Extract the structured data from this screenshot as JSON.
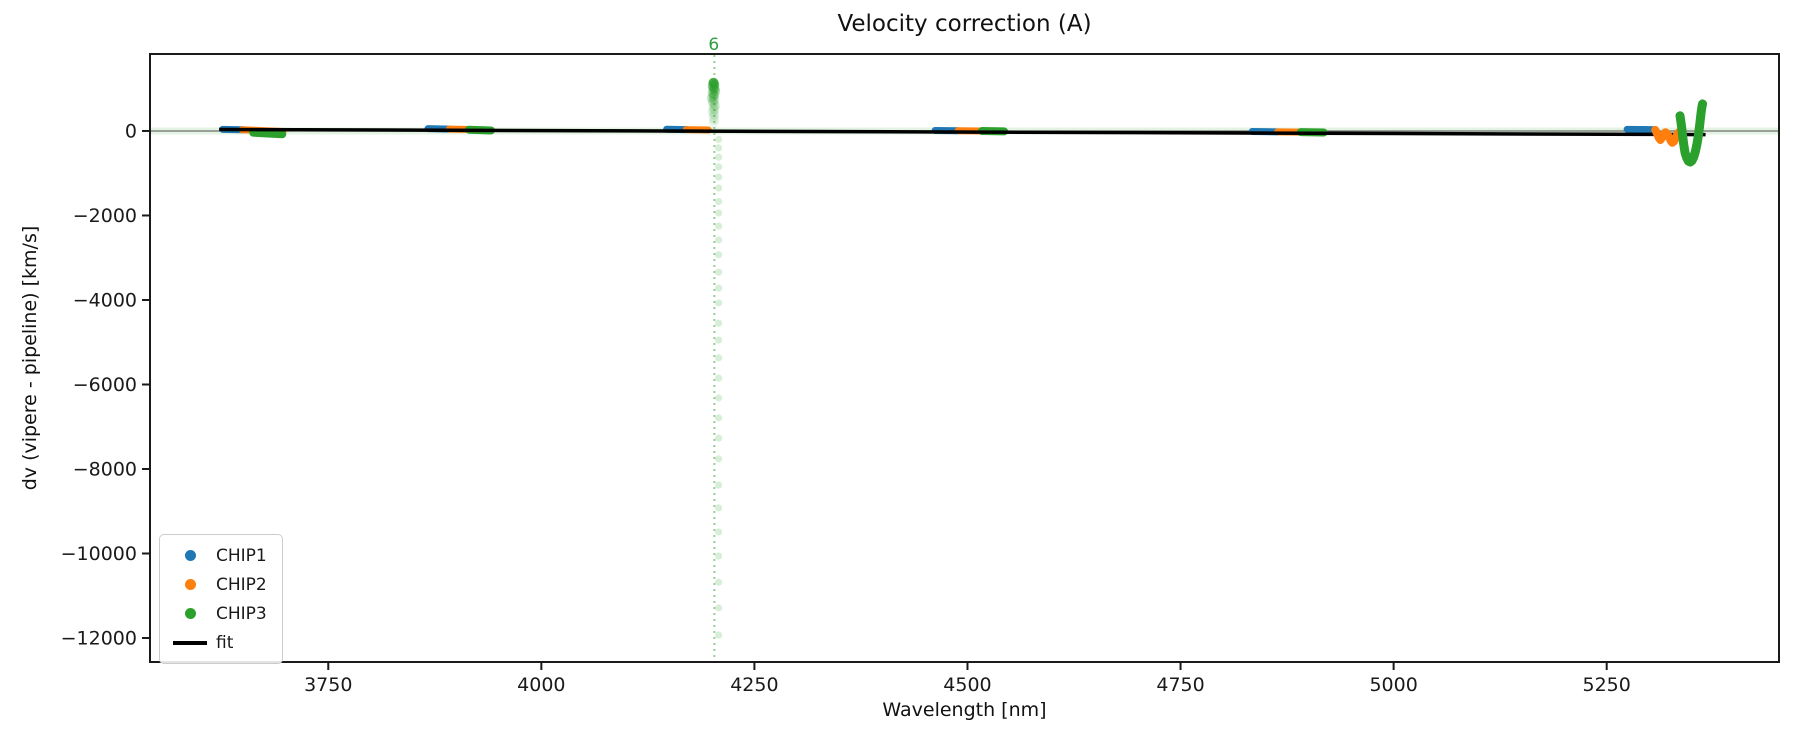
{
  "chart_data": {
    "type": "scatter",
    "title": "Velocity correction (A)",
    "xlabel": "Wavelength [nm]",
    "ylabel": "dv (vipere - pipeline) [km/s]",
    "xlim": [
      3542,
      5451
    ],
    "ylim": [
      -12544,
      1798
    ],
    "grid": false,
    "xticks": [
      {
        "value": 3750,
        "label": "3750"
      },
      {
        "value": 4000,
        "label": "4000"
      },
      {
        "value": 4250,
        "label": "4250"
      },
      {
        "value": 4500,
        "label": "4500"
      },
      {
        "value": 4750,
        "label": "4750"
      },
      {
        "value": 5000,
        "label": "5000"
      },
      {
        "value": 5250,
        "label": "5250"
      }
    ],
    "yticks": [
      {
        "value": 0,
        "label": "0"
      },
      {
        "value": -2000,
        "label": "−2000"
      },
      {
        "value": -4000,
        "label": "−4000"
      },
      {
        "value": -6000,
        "label": "−6000"
      },
      {
        "value": -8000,
        "label": "−8000"
      },
      {
        "value": -10000,
        "label": "−10000"
      },
      {
        "value": -12000,
        "label": "−12000"
      }
    ],
    "legend": {
      "position": "lower left",
      "entries": [
        {
          "label": "CHIP1",
          "color": "#1f77b4",
          "marker": "dot"
        },
        {
          "label": "CHIP2",
          "color": "#ff7f0e",
          "marker": "dot"
        },
        {
          "label": "CHIP3",
          "color": "#2ca02c",
          "marker": "dot"
        },
        {
          "label": "fit",
          "color": "#000000",
          "marker": "line"
        }
      ]
    },
    "zero_line": {
      "dv": 0,
      "band_color": "rgba(44,160,44,0.13)",
      "line_color": "#4d4d4d"
    },
    "vline": {
      "x": 4203,
      "label": "6",
      "color": "rgba(44,160,44,0.5)",
      "style": "dotted"
    },
    "fit_line": {
      "color": "#000000",
      "points": [
        [
          3622,
          36
        ],
        [
          5366,
          -85
        ]
      ]
    },
    "series": [
      {
        "name": "CHIP1",
        "color": "#1f77b4",
        "stroke": 7,
        "segments": [
          {
            "x": [
              3626,
              3650
            ],
            "dv": [
              38,
              30
            ]
          },
          {
            "x": [
              3867,
              3892
            ],
            "dv": [
              55,
              45
            ]
          },
          {
            "x": [
              4147,
              4170
            ],
            "dv": [
              40,
              32
            ]
          },
          {
            "x": [
              4462,
              4489
            ],
            "dv": [
              12,
              5
            ]
          },
          {
            "x": [
              4834,
              4864
            ],
            "dv": [
              -12,
              -20
            ]
          },
          {
            "x": [
              5274,
              5307
            ],
            "dv": [
              38,
              30
            ]
          }
        ]
      },
      {
        "name": "CHIP2",
        "color": "#ff7f0e",
        "stroke": 7,
        "segments": [
          {
            "x": [
              3649,
              3697
            ],
            "dv": [
              30,
              -12
            ]
          },
          {
            "x": [
              3892,
              3916
            ],
            "dv": [
              45,
              35
            ]
          },
          {
            "x": [
              4170,
              4196
            ],
            "dv": [
              32,
              22
            ]
          },
          {
            "x": [
              4489,
              4517
            ],
            "dv": [
              5,
              -2
            ]
          },
          {
            "x": [
              4864,
              4891
            ],
            "dv": [
              -20,
              -27
            ]
          }
        ],
        "squiggle": [
          [
            5307,
            25
          ],
          [
            5309,
            -60
          ],
          [
            5311,
            -160
          ],
          [
            5313,
            -215
          ],
          [
            5315,
            -160
          ],
          [
            5317,
            -70
          ],
          [
            5319,
            -30
          ],
          [
            5321,
            -60
          ],
          [
            5323,
            -140
          ],
          [
            5325,
            -230
          ],
          [
            5327,
            -280
          ],
          [
            5329,
            -250
          ],
          [
            5331,
            -160
          ],
          [
            5333,
            -70
          ],
          [
            5335,
            -20
          ]
        ]
      },
      {
        "name": "CHIP3",
        "color": "#2ca02c",
        "stroke": 8,
        "segments": [
          {
            "x": [
              3662,
              3696
            ],
            "dv": [
              -40,
              -78
            ]
          },
          {
            "x": [
              3915,
              3941
            ],
            "dv": [
              30,
              12
            ]
          },
          {
            "x": [
              4517,
              4543
            ],
            "dv": [
              -2,
              -10
            ]
          },
          {
            "x": [
              4891,
              4918
            ],
            "dv": [
              -27,
              -35
            ]
          }
        ],
        "v_curve": [
          [
            5336,
            360
          ],
          [
            5337,
            230
          ],
          [
            5338,
            80
          ],
          [
            5339,
            -100
          ],
          [
            5340,
            -260
          ],
          [
            5341,
            -400
          ],
          [
            5342,
            -520
          ],
          [
            5344,
            -640
          ],
          [
            5346,
            -715
          ],
          [
            5348,
            -735
          ],
          [
            5350,
            -705
          ],
          [
            5352,
            -625
          ],
          [
            5354,
            -490
          ],
          [
            5356,
            -300
          ],
          [
            5357,
            -180
          ],
          [
            5358,
            -40
          ],
          [
            5359,
            120
          ],
          [
            5360,
            300
          ],
          [
            5361,
            470
          ],
          [
            5362,
            600
          ],
          [
            5362.5,
            640
          ]
        ],
        "outlier_blob": [
          [
            4202,
            1140,
            0.85
          ],
          [
            4203,
            1100,
            0.6
          ],
          [
            4201,
            1060,
            0.5
          ],
          [
            4203,
            1020,
            0.45
          ],
          [
            4202,
            980,
            0.4
          ],
          [
            4204,
            950,
            0.35
          ],
          [
            4201,
            900,
            0.32
          ],
          [
            4203,
            860,
            0.3
          ],
          [
            4202,
            820,
            0.28
          ],
          [
            4200,
            780,
            0.25
          ],
          [
            4203,
            740,
            0.22
          ],
          [
            4201,
            700,
            0.2
          ],
          [
            4202,
            650,
            0.18
          ],
          [
            4204,
            600,
            0.16
          ],
          [
            4202,
            550,
            0.15
          ],
          [
            4203,
            500,
            0.14
          ],
          [
            4201,
            450,
            0.13
          ],
          [
            4203,
            390,
            0.12
          ],
          [
            4202,
            330,
            0.1
          ],
          [
            4203,
            260,
            0.09
          ],
          [
            4202,
            190,
            0.08
          ]
        ],
        "outlier_trail": {
          "x": 4208,
          "alpha": 0.18,
          "dv": [
            -200,
            -400,
            -620,
            -850,
            -1090,
            -1350,
            -1670,
            -1940,
            -2250,
            -2580,
            -2930,
            -3340,
            -3720,
            -4070,
            -4550,
            -4950,
            -5370,
            -5850,
            -6320,
            -6790,
            -7270,
            -7760,
            -8380,
            -8920,
            -9490,
            -10060,
            -10680,
            -11290,
            -11930
          ]
        }
      }
    ]
  }
}
